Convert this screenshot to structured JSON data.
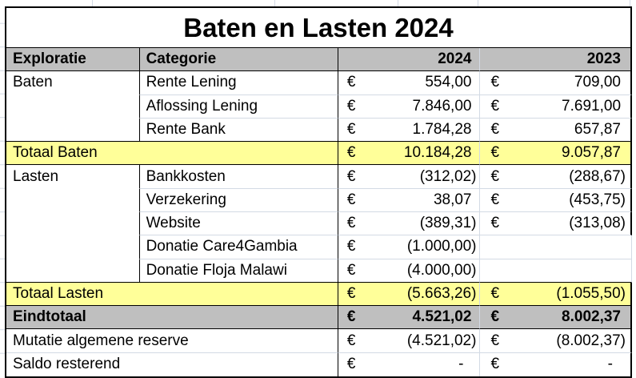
{
  "title": "Baten en Lasten 2024",
  "currency_symbol": "€",
  "columns": {
    "exploratie": "Exploratie",
    "categorie": "Categorie",
    "y2024": "2024",
    "y2023": "2023"
  },
  "colors": {
    "header_fill": "#bfbfbf",
    "total_fill": "#ffff99",
    "grand_total_fill": "#bfbfbf",
    "border": "#000000",
    "gridline": "#d3dae4"
  },
  "rows": [
    {
      "type": "data",
      "exploratie": "Baten",
      "categorie": "Rente Lening",
      "v2024": "554,00",
      "v2023": "709,00"
    },
    {
      "type": "data",
      "exploratie": "",
      "categorie": "Aflossing Lening",
      "v2024": "7.846,00",
      "v2023": "7.691,00"
    },
    {
      "type": "data",
      "exploratie": "",
      "categorie": "Rente Bank",
      "v2024": "1.784,28",
      "v2023": "657,87"
    },
    {
      "type": "total",
      "label": "Totaal Baten",
      "v2024": "10.184,28",
      "v2023": "9.057,87"
    },
    {
      "type": "data",
      "exploratie": "Lasten",
      "categorie": "Bankkosten",
      "v2024": "(312,02)",
      "v2023": "(288,67)"
    },
    {
      "type": "data",
      "exploratie": "",
      "categorie": "Verzekering",
      "v2024": "38,07",
      "v2023": "(453,75)"
    },
    {
      "type": "data",
      "exploratie": "",
      "categorie": "Website",
      "v2024": "(389,31)",
      "v2023": "(313,08)"
    },
    {
      "type": "data",
      "exploratie": "",
      "categorie": "Donatie Care4Gambia",
      "v2024": "(1.000,00)",
      "v2023": null
    },
    {
      "type": "data",
      "exploratie": "",
      "categorie": "Donatie Floja Malawi",
      "v2024": "(4.000,00)",
      "v2023": null
    },
    {
      "type": "total",
      "label": "Totaal Lasten",
      "v2024": "(5.663,26)",
      "v2023": "(1.055,50)"
    },
    {
      "type": "grand",
      "label": "Eindtotaal",
      "v2024": "4.521,02",
      "v2023": "8.002,37"
    },
    {
      "type": "plain",
      "label": "Mutatie algemene reserve",
      "v2024": "(4.521,02)",
      "v2023": "(8.002,37)"
    },
    {
      "type": "plain",
      "label": "Saldo resterend",
      "v2024": "-",
      "v2023": "-"
    }
  ]
}
